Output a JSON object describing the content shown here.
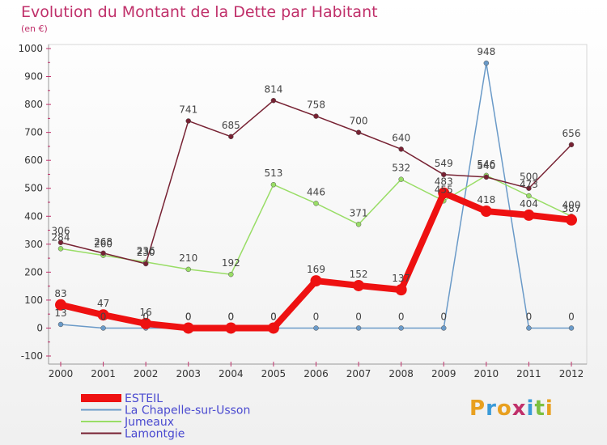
{
  "title": "Evolution du Montant de la Dette par Habitant",
  "subtitle": "(en €)",
  "brand": {
    "text": "Proxiti",
    "letters": [
      {
        "ch": "P",
        "color": "#e8a020"
      },
      {
        "ch": "r",
        "color": "#3a9ad8"
      },
      {
        "ch": "o",
        "color": "#e8a020"
      },
      {
        "ch": "x",
        "color": "#c0306a"
      },
      {
        "ch": "i",
        "color": "#3a9ad8"
      },
      {
        "ch": "t",
        "color": "#7cc040"
      },
      {
        "ch": "i",
        "color": "#e8a020"
      }
    ]
  },
  "chart_data": {
    "type": "line",
    "x": [
      "2000",
      "2001",
      "2002",
      "2003",
      "2004",
      "2005",
      "2006",
      "2007",
      "2008",
      "2009",
      "2010",
      "2011",
      "2012"
    ],
    "ylim": [
      -100,
      1000
    ],
    "yticks": [
      -100,
      0,
      100,
      200,
      300,
      400,
      500,
      600,
      700,
      800,
      900,
      1000
    ],
    "grid": false,
    "legend_position": "bottom-left",
    "series": [
      {
        "name": "ESTEIL",
        "color": "#ee1111",
        "values": [
          83,
          47,
          16,
          0,
          0,
          0,
          169,
          152,
          137,
          483,
          418,
          404,
          387
        ],
        "labels": [
          "83",
          "47",
          "16",
          "0",
          "0",
          "0",
          "169",
          "152",
          "137",
          "483",
          "418",
          "404",
          "387"
        ]
      },
      {
        "name": "La Chapelle-sur-Usson",
        "color": "#6a9ac8",
        "values": [
          13,
          0,
          0,
          0,
          0,
          0,
          0,
          0,
          0,
          0,
          948,
          0,
          0
        ],
        "labels": [
          "13",
          "0",
          "0",
          "0",
          "0",
          "0",
          "0",
          "0",
          "0",
          "0",
          "948",
          "0",
          "0"
        ]
      },
      {
        "name": "Jumeaux",
        "color": "#99dd66",
        "values": [
          284,
          260,
          236,
          210,
          192,
          513,
          446,
          371,
          532,
          455,
          546,
          473,
          400
        ],
        "labels": [
          "284",
          "260",
          "236",
          "210",
          "192",
          "513",
          "446",
          "371",
          "532",
          "455",
          "546",
          "473",
          "400"
        ]
      },
      {
        "name": "Lamontgie",
        "color": "#772233",
        "values": [
          306,
          268,
          230,
          741,
          685,
          814,
          758,
          700,
          640,
          549,
          540,
          500,
          656
        ],
        "labels": [
          "306",
          "268",
          "230",
          "741",
          "685",
          "814",
          "758",
          "700",
          "640",
          "549",
          "540",
          "500",
          "656"
        ]
      }
    ]
  }
}
